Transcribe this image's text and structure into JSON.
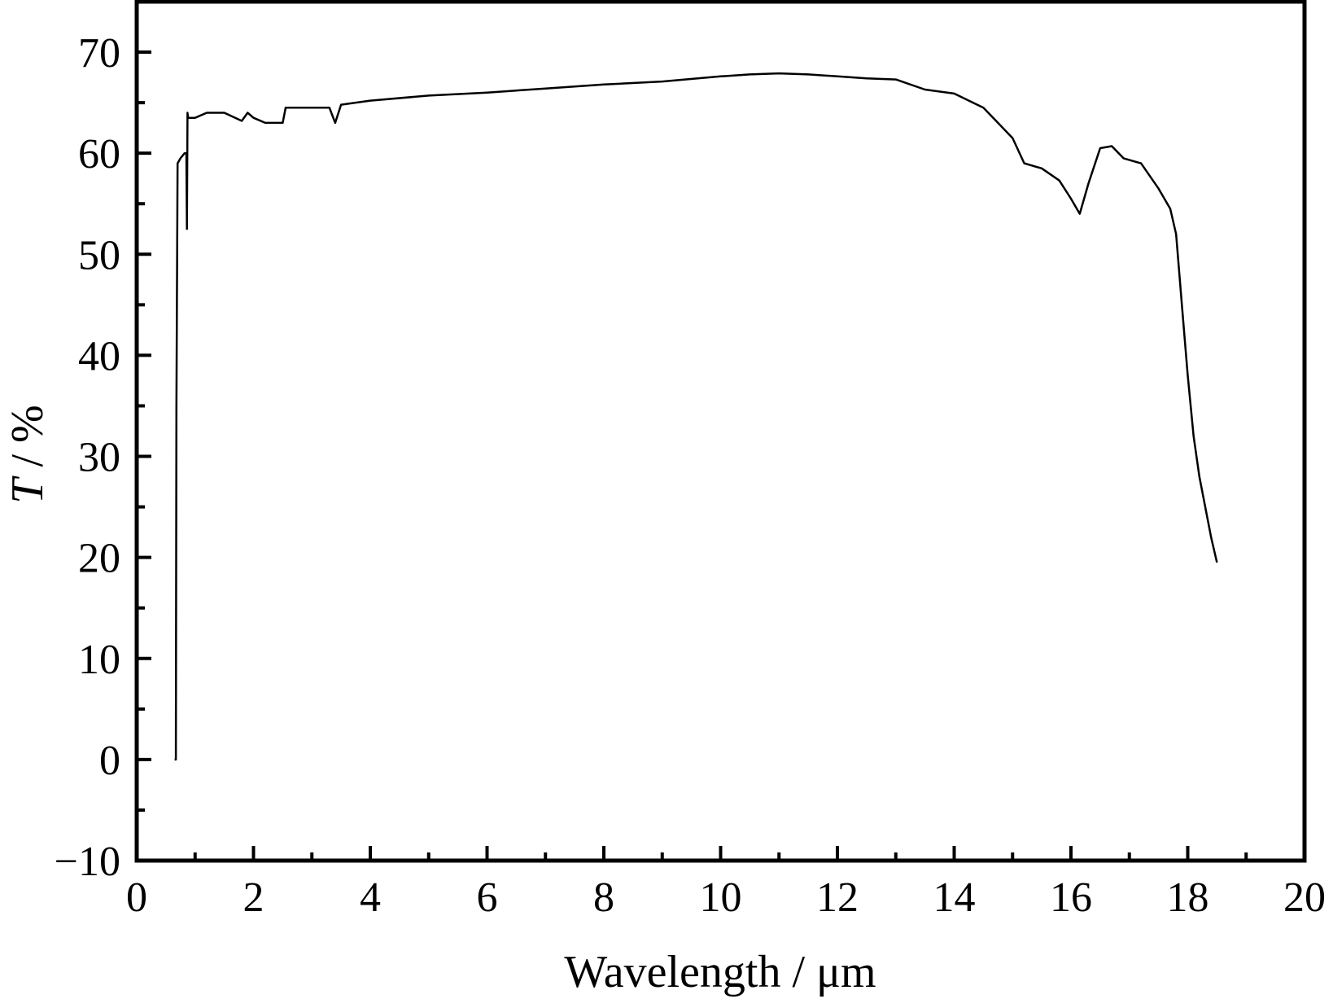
{
  "chart_data": {
    "type": "line",
    "xlabel": "Wavelength / μm",
    "ylabel_italic": "T",
    "ylabel_rest": " / %",
    "xlim": [
      0,
      20
    ],
    "ylim": [
      -10,
      75
    ],
    "x_ticks": [
      0,
      2,
      4,
      6,
      8,
      10,
      12,
      14,
      16,
      18,
      20
    ],
    "x_tick_labels": [
      "0",
      "2",
      "4",
      "6",
      "8",
      "10",
      "12",
      "14",
      "16",
      "18",
      "20"
    ],
    "x_minor_step": 1,
    "y_ticks": [
      -10,
      0,
      10,
      20,
      30,
      40,
      50,
      60,
      70
    ],
    "y_tick_labels": [
      "−10",
      "0",
      "10",
      "20",
      "30",
      "40",
      "50",
      "60",
      "70"
    ],
    "y_minor_step": 5,
    "grid": false,
    "line_color": "#000000",
    "series": [
      {
        "x": [
          0.65,
          0.67,
          0.68,
          0.7,
          0.75,
          0.82,
          0.85,
          0.86,
          0.87,
          0.88,
          1.0,
          1.2,
          1.5,
          1.8,
          1.9,
          2.0,
          2.2,
          2.5,
          2.55,
          2.8,
          3.0,
          3.3,
          3.4,
          3.5,
          4.0,
          5.0,
          6.0,
          7.0,
          8.0,
          9.0,
          10.0,
          10.5,
          11.0,
          11.5,
          12.0,
          12.5,
          13.0,
          13.5,
          14.0,
          14.5,
          15.0,
          15.2,
          15.5,
          15.8,
          16.0,
          16.15,
          16.3,
          16.5,
          16.7,
          16.9,
          17.2,
          17.5,
          17.7,
          17.8,
          17.9,
          18.0,
          18.1,
          18.2,
          18.3,
          18.4,
          18.5
        ],
        "y": [
          0,
          0,
          35,
          59,
          59.5,
          60,
          60,
          52.5,
          64,
          63.5,
          63.5,
          64,
          64,
          63.2,
          64,
          63.5,
          63,
          63,
          64.5,
          64.5,
          64.5,
          64.5,
          63,
          64.8,
          65.2,
          65.7,
          66,
          66.4,
          66.8,
          67.1,
          67.6,
          67.8,
          67.9,
          67.8,
          67.6,
          67.4,
          67.3,
          66.3,
          65.9,
          64.5,
          61.5,
          59,
          58.5,
          57.3,
          55.5,
          54,
          57,
          60.5,
          60.7,
          59.5,
          59,
          56.5,
          54.5,
          52,
          45,
          38,
          32,
          28,
          25,
          22,
          19.5
        ]
      }
    ]
  }
}
